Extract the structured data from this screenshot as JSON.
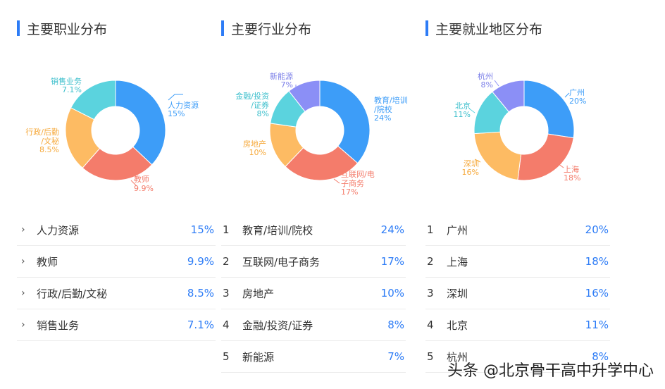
{
  "colors": {
    "accent": "#2d7cf6",
    "blue": "#3d9df8",
    "red": "#f47c6b",
    "yellow": "#fdbb63",
    "teal": "#5bd3de",
    "purple": "#8b8ff6"
  },
  "occupation": {
    "title": "主要职业分布",
    "chart_data": {
      "type": "pie",
      "slices": [
        {
          "label": "人力资源",
          "pct": "15%",
          "value": 15,
          "color": "#3d9df8"
        },
        {
          "label": "教师",
          "pct": "9.9%",
          "value": 9.9,
          "color": "#f47c6b"
        },
        {
          "label": "行政/后勤/文秘",
          "pct": "8.5%",
          "value": 8.5,
          "color": "#fdbb63"
        },
        {
          "label": "销售业务",
          "pct": "7.1%",
          "value": 7.1,
          "color": "#5bd3de"
        }
      ]
    },
    "callout": {
      "hr": "人力资源",
      "hr_pct": "15%",
      "teacher": "教师",
      "teacher_pct": "9.9%",
      "admin1": "行政/后勤",
      "admin2": "/文秘",
      "admin_pct": "8.5%",
      "sales": "销售业务",
      "sales_pct": "7.1%"
    },
    "rows": [
      {
        "name": "人力资源",
        "value": "15%"
      },
      {
        "name": "教师",
        "value": "9.9%"
      },
      {
        "name": "行政/后勤/文秘",
        "value": "8.5%"
      },
      {
        "name": "销售业务",
        "value": "7.1%"
      }
    ]
  },
  "industry": {
    "title": "主要行业分布",
    "chart_data": {
      "type": "pie",
      "slices": [
        {
          "label": "教育/培训/院校",
          "pct": "24%",
          "value": 24,
          "color": "#3d9df8"
        },
        {
          "label": "互联网/电子商务",
          "pct": "17%",
          "value": 17,
          "color": "#f47c6b"
        },
        {
          "label": "房地产",
          "pct": "10%",
          "value": 10,
          "color": "#fdbb63"
        },
        {
          "label": "金融/投资/证券",
          "pct": "8%",
          "value": 8,
          "color": "#5bd3de"
        },
        {
          "label": "新能源",
          "pct": "7%",
          "value": 7,
          "color": "#8b8ff6"
        }
      ]
    },
    "callout": {
      "edu1": "教育/培训",
      "edu2": "/院校",
      "edu_pct": "24%",
      "net1": "互联网/电",
      "net2": "子商务",
      "net_pct": "17%",
      "re": "房地产",
      "re_pct": "10%",
      "fin1": "金融/投资",
      "fin2": "/证券",
      "fin_pct": "8%",
      "ne": "新能源",
      "ne_pct": "7%"
    },
    "rows": [
      {
        "rank": "1",
        "name": "教育/培训/院校",
        "value": "24%"
      },
      {
        "rank": "2",
        "name": "互联网/电子商务",
        "value": "17%"
      },
      {
        "rank": "3",
        "name": "房地产",
        "value": "10%"
      },
      {
        "rank": "4",
        "name": "金融/投资/证券",
        "value": "8%"
      },
      {
        "rank": "5",
        "name": "新能源",
        "value": "7%"
      }
    ]
  },
  "region": {
    "title": "主要就业地区分布",
    "chart_data": {
      "type": "pie",
      "slices": [
        {
          "label": "广州",
          "pct": "20%",
          "value": 20,
          "color": "#3d9df8"
        },
        {
          "label": "上海",
          "pct": "18%",
          "value": 18,
          "color": "#f47c6b"
        },
        {
          "label": "深圳",
          "pct": "16%",
          "value": 16,
          "color": "#fdbb63"
        },
        {
          "label": "北京",
          "pct": "11%",
          "value": 11,
          "color": "#5bd3de"
        },
        {
          "label": "杭州",
          "pct": "8%",
          "value": 8,
          "color": "#8b8ff6"
        }
      ]
    },
    "rows": [
      {
        "rank": "1",
        "name": "广州",
        "value": "20%"
      },
      {
        "rank": "2",
        "name": "上海",
        "value": "18%"
      },
      {
        "rank": "3",
        "name": "深圳",
        "value": "16%"
      },
      {
        "rank": "4",
        "name": "北京",
        "value": "11%"
      },
      {
        "rank": "5",
        "name": "杭州",
        "value": "8%"
      }
    ]
  },
  "watermark": "头条 @北京骨干高中升学中心"
}
